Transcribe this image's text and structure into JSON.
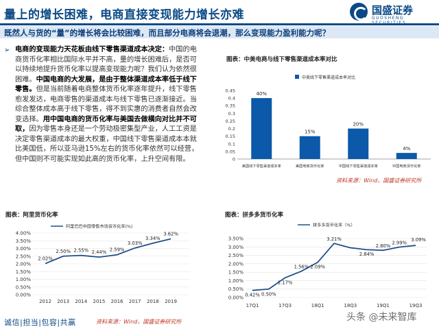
{
  "header": {
    "title": "量上的增长困难，电商直接变现能力增长亦难",
    "brand_name": "国盛证券",
    "brand_sub": "GUOSHENG SECURITIES"
  },
  "question": "既然人与货的“量”的增长将会比较困难，而且部分电商将会退潮，那么变现能力盈利能力呢？",
  "paragraph": [
    {
      "t": "电商的变现能力天花板由线下零售渠道成本决定：",
      "b": true
    },
    {
      "t": "中国的电商货币化率相比国际水平并不高，量的增长困难后，是否可以持续地提升货币化率以提高变现能力呢？我们认为依然很困难。",
      "b": false
    },
    {
      "t": "中国电商的大发展，是由于整体渠道成本率低于线下零售。",
      "b": true
    },
    {
      "t": "但是当前随着电商整体货币化率逐年提升，线下零售愈发发达，电商零售的渠道成本与线下零售已逐渐接近。当综合整体成本高于线下零售，得不到实惠的消费者自然会改变选择。",
      "b": false
    },
    {
      "t": "用中国电商的货币化率与美国去做横向对比并不可取，",
      "b": true
    },
    {
      "t": "因为零售本身还是一个劳动极密集型产业，人工工资是决定零售渠道成本的最大权重，中国线下零售渠道成本本就比美国低，所以亚马逊15%左右的货币化率依然可以经营，但中国则不可能实现如此高的货币化率，上升空间有限。",
      "b": false
    }
  ],
  "labels": {
    "chart1": "图表：中美电商与线下零售渠道成本率对比",
    "chart2": "图表：阿里货币化率",
    "chart3": "图表：拼多多货币化率",
    "source": "资料来源：Wind，国盛证券研究所"
  },
  "footer": {
    "motto": "诚信|担当|包容|共赢",
    "source": "资料来源：Wind，国盛证券研究所",
    "watermark": "头条 @未来智库"
  },
  "colors": {
    "brand": "#0b4a86",
    "bar": "#0b59a8",
    "line": "#1f4e8c",
    "source_text": "#c0392b"
  },
  "chart_data": [
    {
      "type": "bar",
      "title": "图表：中美电商与线下零售渠道成本率对比",
      "legend": "中美线下零售渠道成本率对比",
      "categories": [
        "美国线下零售渠道成本率",
        "美国电商货币化率",
        "中国线下零售渠道成本率",
        "中国电商货币化率"
      ],
      "values": [
        0.4,
        0.15,
        0.2,
        0.04
      ],
      "value_labels": [
        "40%",
        "15%",
        "20%",
        "4%"
      ],
      "yticks": [
        "0",
        "0.05",
        "0.1",
        "0.15",
        "0.2",
        "0.25",
        "0.3",
        "0.35",
        "0.4",
        "0.45"
      ],
      "ylim": [
        0,
        0.45
      ]
    },
    {
      "type": "line",
      "title": "图表：阿里货币化率",
      "series_name": "阿里巴巴中国零售市场货币化率(%)",
      "x": [
        "2012",
        "2013",
        "2014",
        "2015",
        "2016",
        "2017",
        "2018",
        "2019"
      ],
      "values": [
        2.02,
        2.5,
        2.55,
        2.44,
        2.59,
        3.03,
        3.34,
        3.62
      ],
      "value_labels": [
        "2.02%",
        "2.50%",
        "2.55%",
        "2.44%",
        "2.59%",
        "3.03%",
        "3.34%",
        "3.62%"
      ],
      "yticks": [
        "0.00%",
        "0.50%",
        "1.00%",
        "1.50%",
        "2.00%",
        "2.50%",
        "3.00%",
        "3.50%",
        "4.00%"
      ],
      "ylim": [
        0,
        4
      ]
    },
    {
      "type": "line",
      "title": "图表：拼多多货币化率",
      "series_name": "拼多多货币化率（%）",
      "x": [
        "17Q1",
        "17Q2",
        "17Q3",
        "17Q4",
        "18Q1",
        "18Q2",
        "18Q3",
        "18Q4",
        "19Q1",
        "19Q2",
        "19Q3"
      ],
      "x_labels": [
        "17Q1",
        "",
        "17Q3",
        "",
        "18Q1",
        "",
        "18Q3",
        "",
        "19Q1",
        "",
        "19Q3"
      ],
      "values": [
        0.42,
        0.5,
        1.17,
        1.56,
        2.09,
        3.21,
        2.95,
        2.84,
        2.8,
        2.99,
        3.09
      ],
      "value_labels": [
        "0.42%",
        "0.50%",
        "1.17%",
        "1.56%",
        "2.09%",
        "3.21%",
        "",
        "2.84%",
        "2.80%",
        "2.99%",
        "3.09%"
      ],
      "yticks": [
        "0.00%",
        "0.50%",
        "1.00%",
        "1.50%",
        "2.00%",
        "2.50%",
        "3.00%",
        "3.50%"
      ],
      "ylim": [
        0,
        3.5
      ]
    }
  ]
}
